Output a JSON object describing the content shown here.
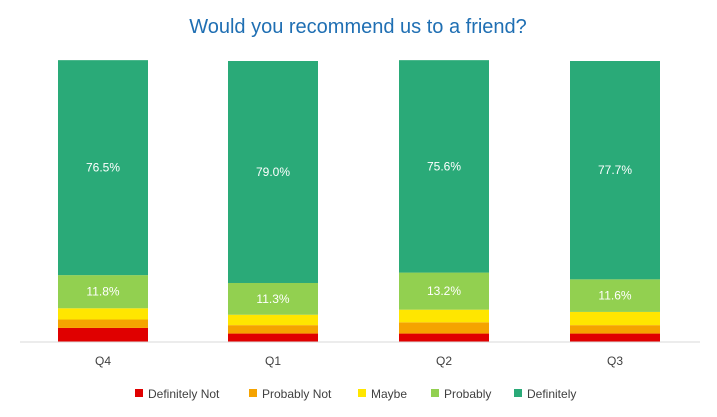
{
  "chart_data": {
    "type": "bar",
    "stacked": true,
    "percent_stacked": true,
    "title": "Would you recommend us to a friend?",
    "xlabel": "",
    "ylabel": "",
    "ylim": [
      0,
      100
    ],
    "grid": false,
    "legend_position": "bottom",
    "categories": [
      "Q4",
      "Q1",
      "Q2",
      "Q3"
    ],
    "series": [
      {
        "name": "Definitely Not",
        "color": "#e00000",
        "values": [
          5.0,
          3.0,
          3.0,
          3.0
        ]
      },
      {
        "name": "Probably Not",
        "color": "#f5a300",
        "values": [
          3.0,
          3.0,
          4.0,
          3.0
        ]
      },
      {
        "name": "Maybe",
        "color": "#ffe600",
        "values": [
          4.0,
          3.7,
          4.5,
          4.7
        ]
      },
      {
        "name": "Probably",
        "color": "#92d050",
        "values": [
          11.8,
          11.3,
          13.2,
          11.6
        ]
      },
      {
        "name": "Definitely",
        "color": "#2aaa78",
        "values": [
          76.5,
          79.0,
          75.6,
          77.7
        ]
      }
    ],
    "data_labels": {
      "Probably": [
        "11.8%",
        "11.3%",
        "13.2%",
        "11.6%"
      ],
      "Definitely": [
        "76.5%",
        "79.0%",
        "75.6%",
        "77.7%"
      ]
    }
  }
}
